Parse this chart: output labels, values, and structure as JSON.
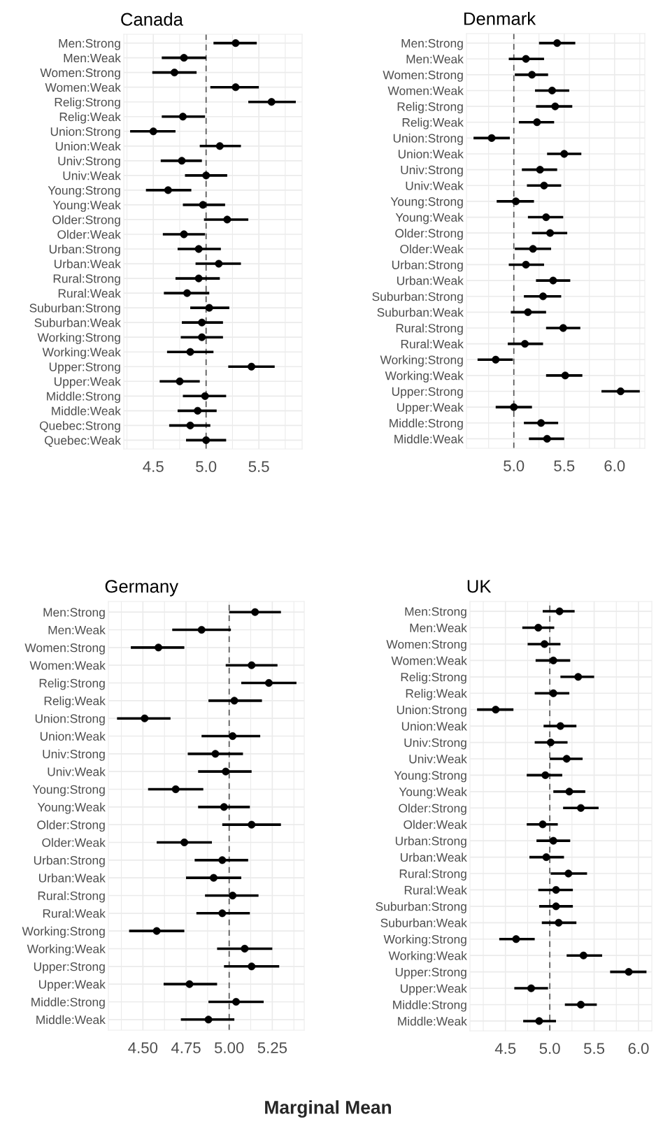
{
  "chart_data": [
    {
      "type": "scatter",
      "orientation": "horizontal",
      "title": "Canada",
      "color": "#000000",
      "marker": "circle",
      "grid": true,
      "categories": [
        "Men:Strong",
        "Men:Weak",
        "Women:Strong",
        "Women:Weak",
        "Relig:Strong",
        "Relig:Weak",
        "Union:Strong",
        "Union:Weak",
        "Univ:Strong",
        "Univ:Weak",
        "Young:Strong",
        "Young:Weak",
        "Older:Strong",
        "Older:Weak",
        "Urban:Strong",
        "Urban:Weak",
        "Rural:Strong",
        "Rural:Weak",
        "Suburban:Strong",
        "Suburban:Weak",
        "Working:Strong",
        "Working:Weak",
        "Upper:Strong",
        "Upper:Weak",
        "Middle:Strong",
        "Middle:Weak",
        "Quebec:Strong",
        "Quebec:Weak"
      ],
      "values": [
        5.28,
        4.79,
        4.7,
        5.28,
        5.62,
        4.78,
        4.5,
        5.13,
        4.77,
        5.0,
        4.64,
        4.97,
        5.2,
        4.79,
        4.93,
        5.12,
        4.93,
        4.82,
        5.03,
        4.96,
        4.96,
        4.85,
        5.43,
        4.75,
        4.99,
        4.92,
        4.85,
        5.0
      ],
      "errors": [
        [
          5.07,
          5.48
        ],
        [
          4.58,
          5.0
        ],
        [
          4.49,
          4.91
        ],
        [
          5.04,
          5.5
        ],
        [
          5.4,
          5.85
        ],
        [
          4.58,
          4.99
        ],
        [
          4.28,
          4.71
        ],
        [
          4.94,
          5.33
        ],
        [
          4.57,
          4.96
        ],
        [
          4.8,
          5.2
        ],
        [
          4.43,
          4.86
        ],
        [
          4.78,
          5.18
        ],
        [
          4.98,
          5.4
        ],
        [
          4.59,
          4.99
        ],
        [
          4.73,
          5.14
        ],
        [
          4.9,
          5.33
        ],
        [
          4.71,
          5.13
        ],
        [
          4.6,
          5.03
        ],
        [
          4.85,
          5.22
        ],
        [
          4.77,
          5.16
        ],
        [
          4.76,
          5.16
        ],
        [
          4.63,
          5.07
        ],
        [
          5.21,
          5.65
        ],
        [
          4.56,
          4.94
        ],
        [
          4.78,
          5.19
        ],
        [
          4.73,
          5.1
        ],
        [
          4.65,
          5.04
        ],
        [
          4.81,
          5.19
        ]
      ],
      "xlim": [
        4.22,
        5.91
      ],
      "xticks": [
        {
          "value": 4.5,
          "label": "4.5"
        },
        {
          "value": 5.0,
          "label": "5.0"
        },
        {
          "value": 5.5,
          "label": "5.5"
        }
      ],
      "ref_lines": [
        {
          "axis": "x",
          "value": 5.0,
          "line_style": "dashed",
          "color": "#555555"
        }
      ]
    },
    {
      "type": "scatter",
      "orientation": "horizontal",
      "title": "Denmark",
      "color": "#000000",
      "marker": "circle",
      "grid": true,
      "categories": [
        "Men:Strong",
        "Men:Weak",
        "Women:Strong",
        "Women:Weak",
        "Relig:Strong",
        "Relig:Weak",
        "Union:Strong",
        "Union:Weak",
        "Univ:Strong",
        "Univ:Weak",
        "Young:Strong",
        "Young:Weak",
        "Older:Strong",
        "Older:Weak",
        "Urban:Strong",
        "Urban:Weak",
        "Suburban:Strong",
        "Suburban:Weak",
        "Rural:Strong",
        "Rural:Weak",
        "Working:Strong",
        "Working:Weak",
        "Upper:Strong",
        "Upper:Weak",
        "Middle:Strong",
        "Middle:Weak"
      ],
      "values": [
        5.43,
        5.12,
        5.18,
        5.38,
        5.41,
        5.23,
        4.78,
        5.5,
        5.26,
        5.3,
        5.02,
        5.32,
        5.36,
        5.19,
        5.12,
        5.39,
        5.29,
        5.14,
        5.49,
        5.11,
        4.82,
        5.51,
        6.06,
        5.0,
        5.27,
        5.33
      ],
      "errors": [
        [
          5.25,
          5.61
        ],
        [
          4.95,
          5.3
        ],
        [
          5.01,
          5.34
        ],
        [
          5.21,
          5.55
        ],
        [
          5.22,
          5.58
        ],
        [
          5.05,
          5.4
        ],
        [
          4.6,
          4.96
        ],
        [
          5.33,
          5.67
        ],
        [
          5.08,
          5.43
        ],
        [
          5.13,
          5.47
        ],
        [
          4.83,
          5.2
        ],
        [
          5.14,
          5.49
        ],
        [
          5.18,
          5.53
        ],
        [
          5.01,
          5.37
        ],
        [
          4.95,
          5.3
        ],
        [
          5.22,
          5.56
        ],
        [
          5.1,
          5.47
        ],
        [
          4.97,
          5.32
        ],
        [
          5.32,
          5.66
        ],
        [
          4.94,
          5.29
        ],
        [
          4.64,
          4.99
        ],
        [
          5.32,
          5.68
        ],
        [
          5.87,
          6.25
        ],
        [
          4.82,
          5.18
        ],
        [
          5.1,
          5.44
        ],
        [
          5.15,
          5.5
        ]
      ],
      "xlim": [
        4.53,
        6.3
      ],
      "xticks": [
        {
          "value": 5.0,
          "label": "5.0"
        },
        {
          "value": 5.5,
          "label": "5.5"
        },
        {
          "value": 6.0,
          "label": "6.0"
        }
      ],
      "ref_lines": [
        {
          "axis": "x",
          "value": 5.0,
          "line_style": "dashed",
          "color": "#555555"
        }
      ]
    },
    {
      "type": "scatter",
      "orientation": "horizontal",
      "title": "Germany",
      "color": "#000000",
      "marker": "circle",
      "grid": true,
      "categories": [
        "Men:Strong",
        "Men:Weak",
        "Women:Strong",
        "Women:Weak",
        "Relig:Strong",
        "Relig:Weak",
        "Union:Strong",
        "Union:Weak",
        "Univ:Strong",
        "Univ:Weak",
        "Young:Strong",
        "Young:Weak",
        "Older:Strong",
        "Older:Weak",
        "Urban:Strong",
        "Urban:Weak",
        "Rural:Strong",
        "Rural:Weak",
        "Working:Strong",
        "Working:Weak",
        "Upper:Strong",
        "Upper:Weak",
        "Middle:Strong",
        "Middle:Weak"
      ],
      "values": [
        5.15,
        4.84,
        4.59,
        5.13,
        5.23,
        5.03,
        4.51,
        5.02,
        4.92,
        4.98,
        4.69,
        4.97,
        5.13,
        4.74,
        4.96,
        4.91,
        5.02,
        4.96,
        4.58,
        5.09,
        5.13,
        4.77,
        5.04,
        4.88
      ],
      "errors": [
        [
          5.0,
          5.3
        ],
        [
          4.67,
          5.01
        ],
        [
          4.43,
          4.74
        ],
        [
          4.98,
          5.28
        ],
        [
          5.07,
          5.39
        ],
        [
          4.88,
          5.19
        ],
        [
          4.35,
          4.66
        ],
        [
          4.84,
          5.18
        ],
        [
          4.76,
          5.08
        ],
        [
          4.82,
          5.13
        ],
        [
          4.53,
          4.85
        ],
        [
          4.82,
          5.12
        ],
        [
          4.96,
          5.3
        ],
        [
          4.58,
          4.9
        ],
        [
          4.8,
          5.11
        ],
        [
          4.75,
          5.07
        ],
        [
          4.86,
          5.17
        ],
        [
          4.81,
          5.12
        ],
        [
          4.42,
          4.74
        ],
        [
          4.93,
          5.25
        ],
        [
          4.97,
          5.29
        ],
        [
          4.62,
          4.93
        ],
        [
          4.88,
          5.2
        ],
        [
          4.72,
          5.03
        ]
      ],
      "xlim": [
        4.3,
        5.435
      ],
      "xticks": [
        {
          "value": 4.5,
          "label": "4.50"
        },
        {
          "value": 4.75,
          "label": "4.75"
        },
        {
          "value": 5.0,
          "label": "5.00"
        },
        {
          "value": 5.25,
          "label": "5.25"
        }
      ],
      "ref_lines": [
        {
          "axis": "x",
          "value": 5.0,
          "line_style": "dashed",
          "color": "#555555"
        }
      ]
    },
    {
      "type": "scatter",
      "orientation": "horizontal",
      "title": "UK",
      "color": "#000000",
      "marker": "circle",
      "grid": true,
      "xlabel": "Marginal Mean",
      "categories": [
        "Men:Strong",
        "Men:Weak",
        "Women:Strong",
        "Women:Weak",
        "Relig:Strong",
        "Relig:Weak",
        "Union:Strong",
        "Union:Weak",
        "Univ:Strong",
        "Univ:Weak",
        "Young:Strong",
        "Young:Weak",
        "Older:Strong",
        "Older:Weak",
        "Urban:Strong",
        "Urban:Weak",
        "Rural:Strong",
        "Rural:Weak",
        "Suburban:Strong",
        "Suburban:Weak",
        "Working:Strong",
        "Working:Weak",
        "Upper:Strong",
        "Upper:Weak",
        "Middle:Strong",
        "Middle:Weak"
      ],
      "values": [
        5.11,
        4.87,
        4.94,
        5.04,
        5.32,
        5.04,
        4.39,
        5.12,
        5.01,
        5.19,
        4.95,
        5.22,
        5.35,
        4.92,
        5.04,
        4.96,
        5.21,
        5.07,
        5.07,
        5.1,
        4.62,
        5.38,
        5.89,
        4.79,
        5.35,
        4.88
      ],
      "errors": [
        [
          4.92,
          5.28
        ],
        [
          4.69,
          5.05
        ],
        [
          4.75,
          5.12
        ],
        [
          4.84,
          5.23
        ],
        [
          5.12,
          5.5
        ],
        [
          4.83,
          5.22
        ],
        [
          4.18,
          4.59
        ],
        [
          4.93,
          5.3
        ],
        [
          4.83,
          5.2
        ],
        [
          5.0,
          5.37
        ],
        [
          4.74,
          5.14
        ],
        [
          5.04,
          5.4
        ],
        [
          5.15,
          5.55
        ],
        [
          4.74,
          5.09
        ],
        [
          4.85,
          5.23
        ],
        [
          4.77,
          5.16
        ],
        [
          5.01,
          5.42
        ],
        [
          4.87,
          5.26
        ],
        [
          4.88,
          5.26
        ],
        [
          4.91,
          5.3
        ],
        [
          4.43,
          4.83
        ],
        [
          5.19,
          5.59
        ],
        [
          5.68,
          6.09
        ],
        [
          4.6,
          4.98
        ],
        [
          5.17,
          5.53
        ],
        [
          4.7,
          5.07
        ]
      ],
      "xlim": [
        4.1,
        6.15
      ],
      "xticks": [
        {
          "value": 4.5,
          "label": "4.5"
        },
        {
          "value": 5.0,
          "label": "5.0"
        },
        {
          "value": 5.5,
          "label": "5.5"
        },
        {
          "value": 6.0,
          "label": "6.0"
        }
      ],
      "ref_lines": [
        {
          "axis": "x",
          "value": 5.0,
          "line_style": "dashed",
          "color": "#555555"
        }
      ]
    }
  ]
}
